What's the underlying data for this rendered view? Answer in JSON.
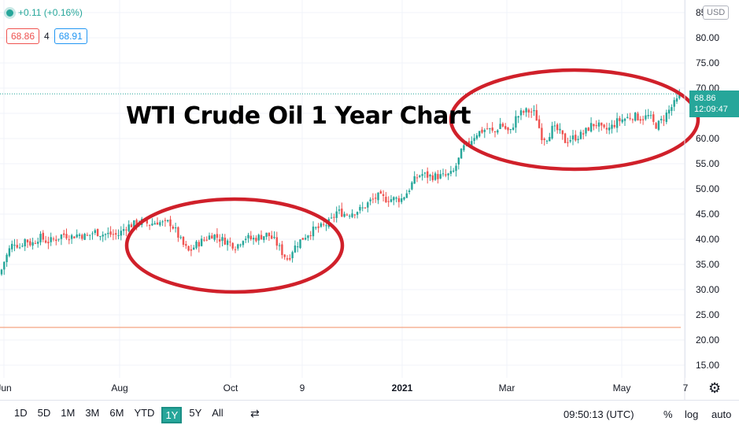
{
  "header": {
    "change": "+0.11 (+0.16%)",
    "bid": "68.86",
    "spread": "4",
    "ask": "68.91",
    "currency": "USD"
  },
  "title": "WTI Crude Oil 1 Year Chart",
  "last_price": {
    "price": "68.86",
    "countdown": "12:09:47"
  },
  "bottom_bar": {
    "periods": [
      "1D",
      "5D",
      "1M",
      "3M",
      "6M",
      "YTD",
      "1Y",
      "5Y",
      "All"
    ],
    "active_period": "1Y",
    "time": "09:50:13 (UTC)",
    "percent": "%",
    "log": "log",
    "auto": "auto"
  },
  "colors": {
    "up": "#26a69a",
    "down": "#ef5350",
    "ellipse": "#d0202a",
    "hline": "#f4a582"
  },
  "chart_data": {
    "type": "candlestick",
    "title": "WTI Crude Oil 1 Year Chart",
    "y_ticks": [
      "15.00",
      "20.00",
      "25.00",
      "30.00",
      "35.00",
      "40.00",
      "45.00",
      "50.00",
      "55.00",
      "60.00",
      "65.00",
      "70.00",
      "75.00",
      "80.00",
      "85"
    ],
    "x_ticks": [
      "Jun",
      "Aug",
      "Oct",
      "9",
      "2021",
      "Mar",
      "May",
      "7"
    ],
    "ylim": [
      12.5,
      87.5
    ],
    "horizontal_line": 22.5,
    "last_price": 68.86,
    "close_series": [
      [
        0,
        33
      ],
      [
        5,
        35.5
      ],
      [
        12,
        38
      ],
      [
        18,
        39.5
      ],
      [
        25,
        38.5
      ],
      [
        32,
        40
      ],
      [
        40,
        39
      ],
      [
        50,
        40.5
      ],
      [
        60,
        39.5
      ],
      [
        70,
        40
      ],
      [
        80,
        41
      ],
      [
        90,
        40.5
      ],
      [
        100,
        41
      ],
      [
        110,
        40.5
      ],
      [
        120,
        41.5
      ],
      [
        130,
        41
      ],
      [
        140,
        41
      ],
      [
        150,
        40.8
      ],
      [
        160,
        42.5
      ],
      [
        170,
        43
      ],
      [
        180,
        43.5
      ],
      [
        190,
        43
      ],
      [
        200,
        43.5
      ],
      [
        210,
        43
      ],
      [
        215,
        43.5
      ],
      [
        222,
        42
      ],
      [
        232,
        39
      ],
      [
        240,
        37.5
      ],
      [
        250,
        39
      ],
      [
        260,
        40
      ],
      [
        270,
        41
      ],
      [
        280,
        40
      ],
      [
        290,
        39.5
      ],
      [
        300,
        38.5
      ],
      [
        310,
        40.5
      ],
      [
        320,
        40
      ],
      [
        330,
        40.5
      ],
      [
        340,
        41
      ],
      [
        350,
        39.5
      ],
      [
        360,
        37
      ],
      [
        366,
        36
      ],
      [
        372,
        38
      ],
      [
        380,
        39.5
      ],
      [
        390,
        41
      ],
      [
        400,
        42
      ],
      [
        410,
        42.5
      ],
      [
        420,
        43.5
      ],
      [
        428,
        45.5
      ],
      [
        440,
        45
      ],
      [
        450,
        45.5
      ],
      [
        460,
        46
      ],
      [
        470,
        47.5
      ],
      [
        480,
        48.5
      ],
      [
        490,
        48
      ],
      [
        500,
        48
      ],
      [
        510,
        48
      ],
      [
        518,
        49.5
      ],
      [
        525,
        51.5
      ],
      [
        535,
        53
      ],
      [
        545,
        52.5
      ],
      [
        555,
        52.5
      ],
      [
        565,
        52.5
      ],
      [
        575,
        53
      ],
      [
        582,
        55.5
      ],
      [
        588,
        58
      ],
      [
        595,
        59
      ],
      [
        600,
        60
      ],
      [
        605,
        61
      ],
      [
        612,
        61.5
      ],
      [
        620,
        62
      ],
      [
        628,
        61
      ],
      [
        636,
        63
      ],
      [
        642,
        62
      ],
      [
        648,
        61
      ],
      [
        655,
        64
      ],
      [
        662,
        65
      ],
      [
        670,
        65.5
      ],
      [
        680,
        65
      ],
      [
        688,
        60.5
      ],
      [
        694,
        60
      ],
      [
        702,
        62
      ],
      [
        710,
        61.5
      ],
      [
        718,
        59.5
      ],
      [
        726,
        60
      ],
      [
        735,
        60.5
      ],
      [
        742,
        61
      ],
      [
        750,
        62.5
      ],
      [
        758,
        63
      ],
      [
        766,
        61.5
      ],
      [
        775,
        62
      ],
      [
        785,
        63.5
      ],
      [
        795,
        64
      ],
      [
        805,
        64.5
      ],
      [
        815,
        64
      ],
      [
        825,
        64.5
      ],
      [
        832,
        62.5
      ],
      [
        838,
        63
      ],
      [
        845,
        64.5
      ],
      [
        852,
        66
      ],
      [
        860,
        67.5
      ],
      [
        866,
        68.86
      ]
    ]
  }
}
